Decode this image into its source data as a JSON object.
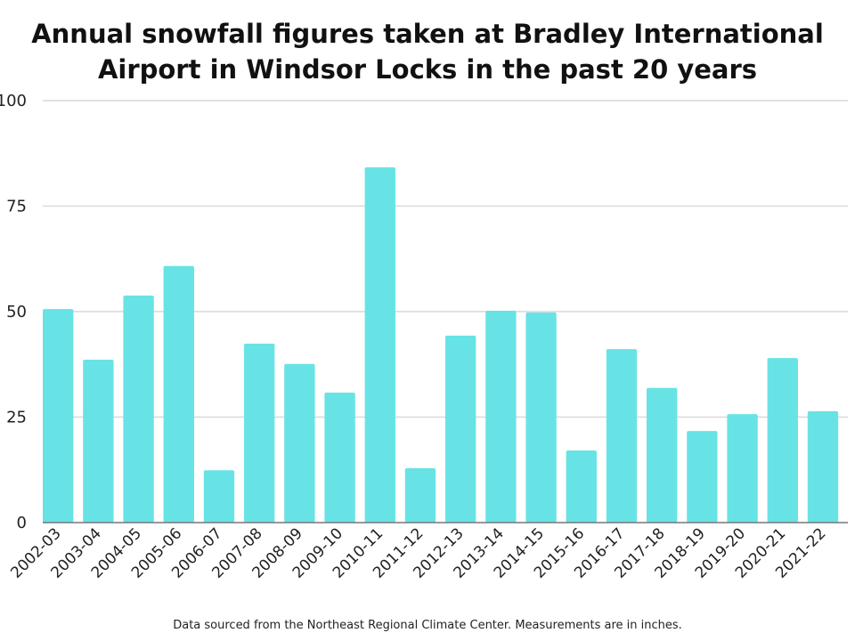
{
  "chart_data": {
    "type": "bar",
    "title": "Annual snowfall figures taken at Bradley International Airport in Windsor Locks in the past 20 years",
    "footnote": "Data sourced from the Northeast Regional Climate Center. Measurements are in inches.",
    "categories": [
      "2002-03",
      "2003-04",
      "2004-05",
      "2005-06",
      "2006-07",
      "2007-08",
      "2008-09",
      "2009-10",
      "2010-11",
      "2011-12",
      "2012-13",
      "2013-14",
      "2014-15",
      "2015-16",
      "2016-17",
      "2017-18",
      "2018-19",
      "2019-20",
      "2020-21",
      "2021-22"
    ],
    "values": [
      50.6,
      38.6,
      53.8,
      60.8,
      12.4,
      42.4,
      37.6,
      30.8,
      84.2,
      12.9,
      44.3,
      50.2,
      49.8,
      17.1,
      41.1,
      31.9,
      21.7,
      25.7,
      39.0,
      26.4
    ],
    "xlabel": "",
    "ylabel": "",
    "ylim": [
      0,
      100
    ],
    "yticks": [
      0,
      25,
      50,
      75,
      100
    ],
    "grid": true,
    "legend": "none",
    "bar_color": "#67e3e6"
  }
}
